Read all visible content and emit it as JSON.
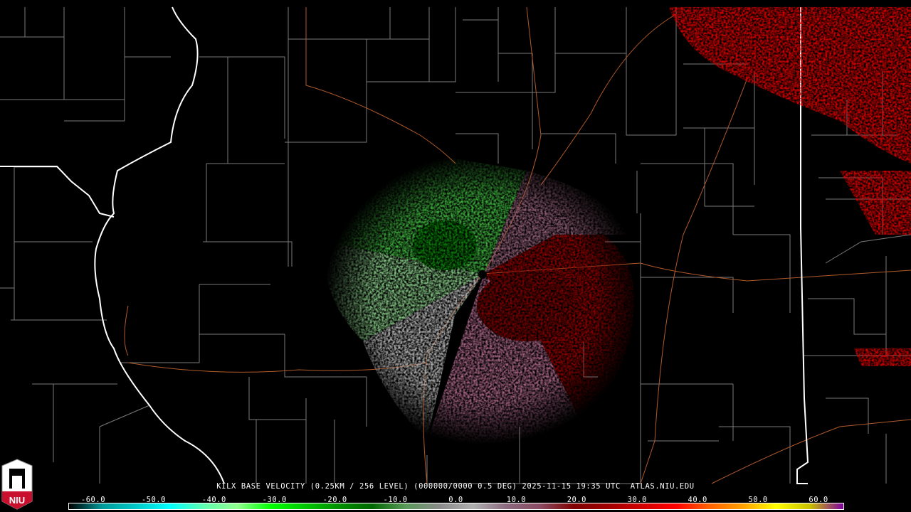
{
  "caption": {
    "station": "KILX",
    "product": "BASE VELOCITY",
    "resolution": "(0.25KM / 256 LEVEL)",
    "volume": "(000000/0000 0.5 DEG)",
    "datetime": "2025-11-15 19:35 UTC",
    "source": "ATLAS.NIU.EDU"
  },
  "caption_text": "KILX BASE VELOCITY (0.25KM / 256 LEVEL) (000000/0000 0.5 DEG) 2025-11-15 19:35 UTC  ATLAS.NIU.EDU",
  "logo": {
    "text": "NIU",
    "icon": "niu-shield-logo"
  },
  "colorbar": {
    "ticks": [
      "-60.0",
      "-50.0",
      "-40.0",
      "-30.0",
      "-20.0",
      "-10.0",
      "0.0",
      "10.0",
      "20.0",
      "30.0",
      "40.0",
      "50.0",
      "60.0"
    ],
    "range": [
      -64,
      64
    ],
    "colors": [
      "#000000",
      "#009a9a",
      "#00c8c8",
      "#00ffff",
      "#60ffb0",
      "#90ff90",
      "#00ff00",
      "#00c800",
      "#009000",
      "#006800",
      "#5a9a5a",
      "#8a8a8a",
      "#b0b0b0",
      "#8a6a80",
      "#8a4a60",
      "#800000",
      "#a00000",
      "#d00000",
      "#ff0000",
      "#ff6000",
      "#ffa000",
      "#ffff00",
      "#c8c000",
      "#8000a0"
    ]
  },
  "colors": {
    "background": "#000000",
    "county_lines": "#7a7a7a",
    "state_lines": "#ffffff",
    "highways": "#b05a2a",
    "inbound_velocity": "#0f8f0f",
    "outbound_velocity": "#8b0000",
    "radar_site": "#000000"
  }
}
